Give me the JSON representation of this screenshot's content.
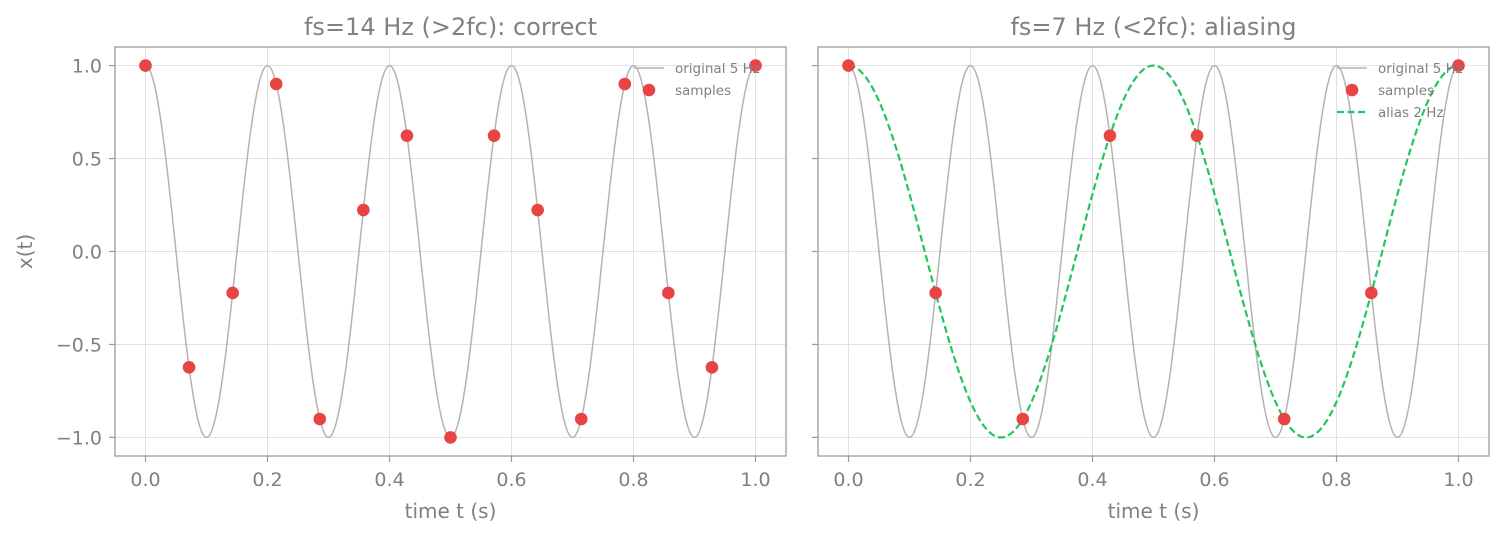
{
  "colors": {
    "original": "#b3b3b3",
    "samples": "#e84444",
    "alias": "#22c55e",
    "grid": "#e0e0e0",
    "spine": "#9a9a9a",
    "text": "#808080"
  },
  "chart_data": [
    {
      "type": "line",
      "title": "fs=14 Hz (>2fc): correct",
      "xlabel": "time t (s)",
      "ylabel": "x(t)",
      "xlim": [
        -0.05,
        1.05
      ],
      "ylim": [
        -1.1,
        1.1
      ],
      "xticks": [
        "0.0",
        "0.2",
        "0.4",
        "0.6",
        "0.8",
        "1.0"
      ],
      "yticks": [
        "1.0",
        "0.5",
        "0.0",
        "−0.5",
        "−1.0"
      ],
      "grid": true,
      "legend_position": "top-right",
      "series": [
        {
          "name": "original 5 Hz",
          "kind": "line",
          "frequency_hz": 5,
          "style": "solid"
        },
        {
          "name": "samples",
          "kind": "scatter",
          "x": [
            0.0,
            0.0714,
            0.1429,
            0.2143,
            0.2857,
            0.3571,
            0.4286,
            0.5,
            0.5714,
            0.6429,
            0.7143,
            0.7857,
            0.8571,
            0.9286,
            1.0
          ],
          "y": [
            1.0,
            -0.623,
            -0.223,
            0.901,
            -0.901,
            0.223,
            0.623,
            -1.0,
            0.623,
            0.223,
            -0.901,
            0.901,
            -0.223,
            -0.623,
            1.0
          ]
        }
      ]
    },
    {
      "type": "line",
      "title": "fs=7 Hz (<2fc): aliasing",
      "xlabel": "time t (s)",
      "ylabel": "",
      "xlim": [
        -0.05,
        1.05
      ],
      "ylim": [
        -1.1,
        1.1
      ],
      "xticks": [
        "0.0",
        "0.2",
        "0.4",
        "0.6",
        "0.8",
        "1.0"
      ],
      "yticks": [],
      "grid": true,
      "legend_position": "top-right",
      "series": [
        {
          "name": "original 5 Hz",
          "kind": "line",
          "frequency_hz": 5,
          "style": "solid"
        },
        {
          "name": "samples",
          "kind": "scatter",
          "x": [
            0.0,
            0.1429,
            0.2857,
            0.4286,
            0.5714,
            0.7143,
            0.8571,
            1.0
          ],
          "y": [
            1.0,
            -0.223,
            -0.901,
            0.623,
            0.623,
            -0.901,
            -0.223,
            1.0
          ]
        },
        {
          "name": "alias 2 Hz",
          "kind": "line",
          "frequency_hz": 2,
          "style": "dashed"
        }
      ]
    }
  ]
}
